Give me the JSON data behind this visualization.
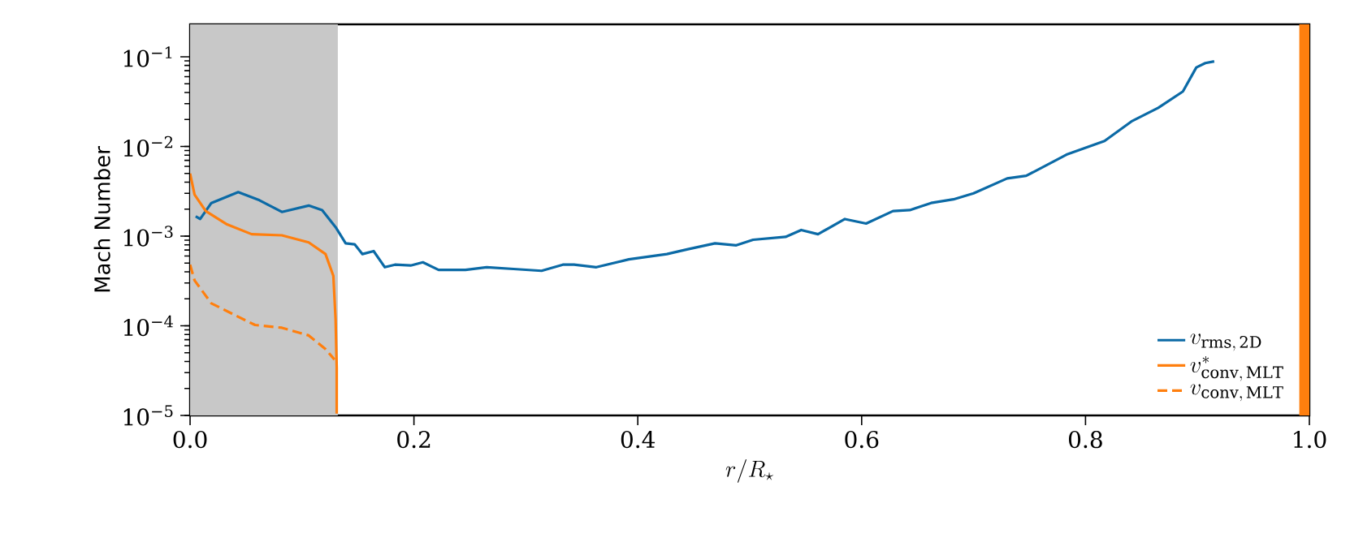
{
  "chart_data": {
    "type": "line",
    "xlabel": "r/R_{\\star}",
    "ylabel": "Mach Number",
    "log": "y",
    "legend": "bottom right",
    "xlim": [
      0,
      1
    ],
    "ylim": [
      1e-05,
      0.23
    ],
    "xticks": [
      {
        "value": 0,
        "label": "0.0"
      },
      {
        "value": 0.2,
        "label": "0.2"
      },
      {
        "value": 0.4,
        "label": "0.4"
      },
      {
        "value": 0.6,
        "label": "0.6"
      },
      {
        "value": 0.8,
        "label": "0.8"
      },
      {
        "value": 1,
        "label": "1.0"
      }
    ],
    "yticks": [
      {
        "value": 1e-05,
        "label": "10$^{−5}$"
      },
      {
        "value": 0.0001,
        "label": "10$^{−4}$"
      },
      {
        "value": 0.001,
        "label": "10$^{−3}$"
      },
      {
        "value": 0.01,
        "label": "10$^{−2}$"
      },
      {
        "value": 0.1,
        "label": "10$^{−1}$"
      }
    ],
    "bands": [
      {
        "axis": "x",
        "from": 0,
        "to": 0.132,
        "color": "#c8c8c8"
      },
      {
        "axis": "x",
        "from": 0.991,
        "to": 1,
        "color": "#ff7f0e"
      }
    ],
    "series": [
      {
        "name": "v_{\\mathrm{rms,\\,2D}}",
        "color": "#0b6aa6",
        "line_style": "solid",
        "x": [
          0.005,
          0.009,
          0.019,
          0.043,
          0.062,
          0.082,
          0.106,
          0.118,
          0.13,
          0.139,
          0.147,
          0.154,
          0.164,
          0.174,
          0.183,
          0.197,
          0.208,
          0.222,
          0.246,
          0.265,
          0.289,
          0.314,
          0.333,
          0.343,
          0.363,
          0.392,
          0.426,
          0.444,
          0.469,
          0.488,
          0.503,
          0.532,
          0.546,
          0.561,
          0.585,
          0.604,
          0.628,
          0.643,
          0.662,
          0.682,
          0.7,
          0.73,
          0.747,
          0.783,
          0.817,
          0.841,
          0.865,
          0.887,
          0.899,
          0.907,
          0.915
        ],
        "values": [
          0.00166,
          0.00155,
          0.00234,
          0.00309,
          0.00251,
          0.00186,
          0.00219,
          0.00195,
          0.00126,
          0.00083,
          0.00081,
          0.00063,
          0.00068,
          0.00045,
          0.00048,
          0.00047,
          0.00051,
          0.00042,
          0.00042,
          0.00045,
          0.00043,
          0.00041,
          0.00048,
          0.00048,
          0.00045,
          0.00055,
          0.00063,
          0.00071,
          0.00083,
          0.00079,
          0.00091,
          0.00098,
          0.00117,
          0.00105,
          0.00155,
          0.00138,
          0.0019,
          0.00195,
          0.00234,
          0.00257,
          0.003,
          0.0044,
          0.0047,
          0.0081,
          0.0115,
          0.019,
          0.027,
          0.041,
          0.076,
          0.085,
          0.089
        ]
      },
      {
        "name": "v^{*}_{\\mathrm{conv,\\,MLT}}",
        "color": "#ff7f0e",
        "line_style": "solid",
        "x": [
          0,
          0.004,
          0.014,
          0.033,
          0.055,
          0.082,
          0.106,
          0.121,
          0.128,
          0.13,
          0.131,
          0.131
        ],
        "values": [
          0.005,
          0.0029,
          0.0019,
          0.00135,
          0.00105,
          0.00102,
          0.00085,
          0.00063,
          0.00036,
          0.000118,
          3.4e-05,
          1.05e-05
        ]
      },
      {
        "name": "v_{\\mathrm{conv,\\,MLT}}",
        "color": "#ff7f0e",
        "line_style": "dashed",
        "x": [
          0,
          0.004,
          0.019,
          0.043,
          0.058,
          0.082,
          0.106,
          0.121,
          0.129
        ],
        "values": [
          0.00048,
          0.00032,
          0.000178,
          0.000126,
          0.000102,
          9.5e-05,
          7.8e-05,
          5.5e-05,
          4.2e-05
        ]
      }
    ]
  }
}
